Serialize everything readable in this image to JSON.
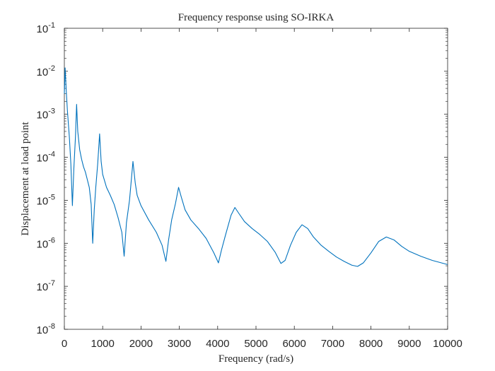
{
  "chart_data": {
    "type": "line",
    "title": "Frequency response using SO-IRKA",
    "xlabel": "Frequency (rad/s)",
    "ylabel": "Displacement at load point",
    "xlim": [
      0,
      10000
    ],
    "ylim": [
      1e-08,
      0.1
    ],
    "yscale": "log",
    "grid": false,
    "x_ticks": [
      "0",
      "1000",
      "2000",
      "3000",
      "4000",
      "5000",
      "6000",
      "7000",
      "8000",
      "9000",
      "10000"
    ],
    "y_ticks": [
      {
        "base": "10",
        "exp": "-8"
      },
      {
        "base": "10",
        "exp": "-7"
      },
      {
        "base": "10",
        "exp": "-6"
      },
      {
        "base": "10",
        "exp": "-5"
      },
      {
        "base": "10",
        "exp": "-4"
      },
      {
        "base": "10",
        "exp": "-3"
      },
      {
        "base": "10",
        "exp": "-2"
      },
      {
        "base": "10",
        "exp": "-1"
      }
    ],
    "series": [
      {
        "color": "#0072BD",
        "points": [
          [
            0,
            0.003
          ],
          [
            20,
            0.012
          ],
          [
            50,
            0.0035
          ],
          [
            80,
            0.0012
          ],
          [
            130,
            0.0003
          ],
          [
            170,
            7e-05
          ],
          [
            210,
            7.5e-06
          ],
          [
            250,
            6e-05
          ],
          [
            290,
            0.0003
          ],
          [
            320,
            0.0017
          ],
          [
            350,
            0.0004
          ],
          [
            400,
            0.00015
          ],
          [
            450,
            9e-05
          ],
          [
            500,
            6e-05
          ],
          [
            550,
            4.5e-05
          ],
          [
            600,
            3e-05
          ],
          [
            650,
            2e-05
          ],
          [
            700,
            8e-06
          ],
          [
            740,
            1e-06
          ],
          [
            780,
            6e-06
          ],
          [
            820,
            2e-05
          ],
          [
            870,
            7e-05
          ],
          [
            920,
            0.00035
          ],
          [
            960,
            8e-05
          ],
          [
            1000,
            4e-05
          ],
          [
            1100,
            2e-05
          ],
          [
            1200,
            1.3e-05
          ],
          [
            1300,
            8e-06
          ],
          [
            1400,
            4e-06
          ],
          [
            1500,
            1.8e-06
          ],
          [
            1560,
            5e-07
          ],
          [
            1620,
            3e-06
          ],
          [
            1700,
            1e-05
          ],
          [
            1790,
            8e-05
          ],
          [
            1850,
            2.5e-05
          ],
          [
            1900,
            1.3e-05
          ],
          [
            2000,
            7.5e-06
          ],
          [
            2200,
            3.5e-06
          ],
          [
            2400,
            1.8e-06
          ],
          [
            2550,
            9e-07
          ],
          [
            2650,
            3.8e-07
          ],
          [
            2720,
            1.2e-06
          ],
          [
            2800,
            3.5e-06
          ],
          [
            2900,
            8.5e-06
          ],
          [
            2980,
            2e-05
          ],
          [
            3050,
            1.2e-05
          ],
          [
            3150,
            6e-06
          ],
          [
            3300,
            3.5e-06
          ],
          [
            3500,
            2.2e-06
          ],
          [
            3700,
            1.3e-06
          ],
          [
            3900,
            6e-07
          ],
          [
            4020,
            3.5e-07
          ],
          [
            4100,
            7e-07
          ],
          [
            4200,
            1.5e-06
          ],
          [
            4350,
            4.5e-06
          ],
          [
            4450,
            6.8e-06
          ],
          [
            4550,
            5e-06
          ],
          [
            4700,
            3.2e-06
          ],
          [
            4900,
            2.2e-06
          ],
          [
            5100,
            1.6e-06
          ],
          [
            5300,
            1.1e-06
          ],
          [
            5500,
            6.2e-07
          ],
          [
            5650,
            3.4e-07
          ],
          [
            5760,
            4e-07
          ],
          [
            5900,
            9e-07
          ],
          [
            6050,
            1.8e-06
          ],
          [
            6200,
            2.7e-06
          ],
          [
            6350,
            2.2e-06
          ],
          [
            6500,
            1.4e-06
          ],
          [
            6700,
            9e-07
          ],
          [
            6900,
            6.5e-07
          ],
          [
            7100,
            4.8e-07
          ],
          [
            7300,
            3.8e-07
          ],
          [
            7500,
            3.1e-07
          ],
          [
            7650,
            2.9e-07
          ],
          [
            7800,
            3.5e-07
          ],
          [
            8000,
            6e-07
          ],
          [
            8200,
            1.1e-06
          ],
          [
            8400,
            1.4e-06
          ],
          [
            8600,
            1.2e-06
          ],
          [
            8800,
            8.5e-07
          ],
          [
            9000,
            6.5e-07
          ],
          [
            9300,
            5e-07
          ],
          [
            9600,
            4e-07
          ],
          [
            10000,
            3.2e-07
          ]
        ]
      }
    ]
  }
}
